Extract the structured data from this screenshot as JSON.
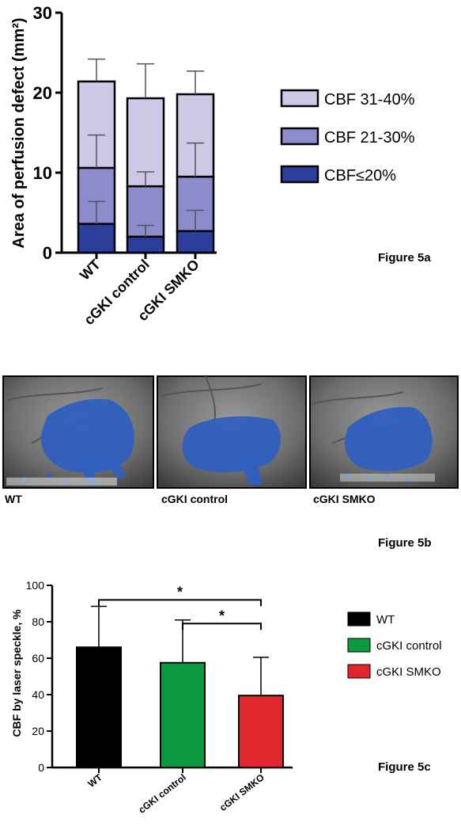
{
  "chart_data": [
    {
      "type": "bar",
      "stacked": true,
      "title": "",
      "ylabel": "Area of perfusion defect (mm²)",
      "xlabel": "",
      "ylim": [
        0,
        30
      ],
      "yticks": [
        "0",
        "10",
        "20",
        "30"
      ],
      "categories": [
        "WT",
        "cGKI control",
        "cGKI SMKO"
      ],
      "series": [
        {
          "name": "CBF≤20%",
          "color": "#2b3f9a",
          "values": [
            3.6,
            2.0,
            2.7
          ],
          "error": [
            2.8,
            1.4,
            2.6
          ]
        },
        {
          "name": "CBF 21-30%",
          "color": "#8c8ccc",
          "values": [
            7.0,
            6.3,
            6.8
          ],
          "error": [
            4.1,
            1.8,
            4.2
          ]
        },
        {
          "name": "CBF 31-40%",
          "color": "#cdc8e6",
          "values": [
            10.8,
            11.0,
            10.3
          ],
          "error": [
            2.8,
            4.3,
            2.9
          ]
        }
      ],
      "legend_position": "right",
      "caption": "Figure 5a"
    },
    {
      "type": "bar",
      "title": "",
      "ylabel": "CBF by laser speckle, %",
      "xlabel": "",
      "ylim": [
        0,
        100
      ],
      "yticks": [
        "0",
        "20",
        "40",
        "60",
        "80",
        "100"
      ],
      "categories": [
        "WT",
        "cGKI control",
        "cGKI SMKO"
      ],
      "series": [
        {
          "name": "",
          "values": [
            66,
            57.5,
            39.5
          ],
          "error": [
            22.5,
            23.5,
            21
          ]
        }
      ],
      "colors": [
        "#000000",
        "#0b9a3e",
        "#e2262e"
      ],
      "legend": [
        {
          "label": "WT",
          "color": "#000000"
        },
        {
          "label": "cGKI control",
          "color": "#0b9a3e"
        },
        {
          "label": "cGKI SMKO",
          "color": "#e2262e"
        }
      ],
      "annotations": [
        {
          "text": "*",
          "from": "WT",
          "to": "cGKI SMKO"
        },
        {
          "text": "*",
          "from": "cGKI control",
          "to": "cGKI SMKO"
        }
      ],
      "legend_position": "right",
      "caption": "Figure 5c"
    }
  ],
  "figure_b": {
    "panels": [
      {
        "label": "WT"
      },
      {
        "label": "cGKI control"
      },
      {
        "label": "cGKI SMKO"
      }
    ],
    "caption": "Figure 5b"
  }
}
